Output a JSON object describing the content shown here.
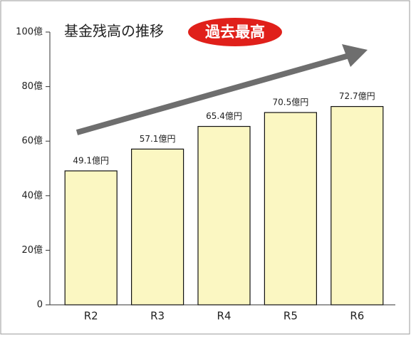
{
  "chart_data": {
    "type": "bar",
    "title": "基金残高の推移",
    "badge": "過去最高",
    "categories": [
      "R2",
      "R3",
      "R4",
      "R5",
      "R6"
    ],
    "values": [
      49.1,
      57.1,
      65.4,
      70.5,
      72.7
    ],
    "value_labels": [
      "49.1億円",
      "57.1億円",
      "65.4億円",
      "70.5億円",
      "72.7億円"
    ],
    "color": "#fbf7c2",
    "ylim": [
      0,
      100
    ],
    "yticks": [
      0,
      {
        "value": 20,
        "label": "20億"
      },
      {
        "value": 40,
        "label": "40億"
      },
      {
        "value": 60,
        "label": "60億"
      },
      {
        "value": 80,
        "label": "80億"
      },
      {
        "value": 100,
        "label": "100億"
      }
    ]
  }
}
